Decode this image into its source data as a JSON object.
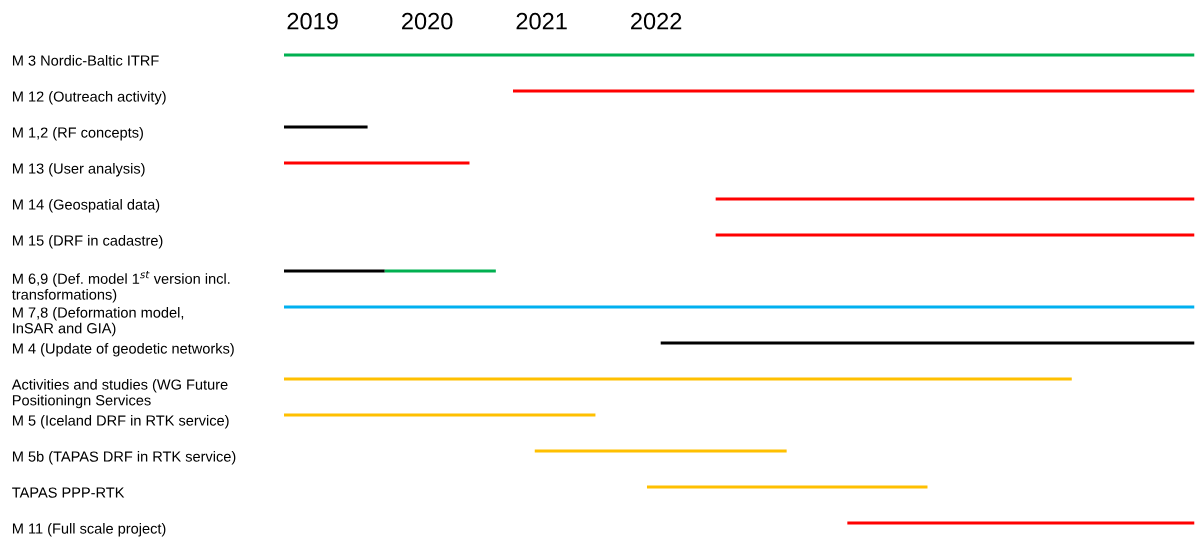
{
  "chart_data": {
    "type": "bar",
    "orientation": "horizontal",
    "categories": [
      "M 3 Nordic-Baltic ITRF",
      "M 12 (Outreach activity)",
      "M 1,2 (RF concepts)",
      "M 13 (User analysis)",
      "M 14 (Geospatial data)",
      "M 15 (DRF in cadastre)",
      "M 6,9 (Def. model 1$^{st}$ version incl.\ntransformations)",
      "M 7,8 (Deformation model,\nInSAR and GIA)",
      "M 4 (Update of geodetic networks)",
      "Activities and studies (WG Future\nPositioningn Services",
      "M 5 (Iceland DRF in RTK service)",
      "M 5b (TAPAS DRF in RTK service)",
      "TAPAS PPP-RTK",
      "M 11 (Full scale project)"
    ],
    "series": [
      {
        "base": [
          2019,
          2021,
          2019,
          2019,
          2022.77,
          2022.77,
          2019,
          2019,
          2022.29,
          2019,
          2019,
          2021.19,
          2022.17,
          2023.92
        ],
        "values": [
          7.95,
          5.95,
          0.73,
          1.62,
          4.18,
          4.18,
          0.88,
          7.95,
          4.66,
          6.88,
          2.72,
          2.2,
          2.45,
          3.03
        ],
        "colors": [
          "#00b050",
          "#ff0000",
          "#000000",
          "#ff0000",
          "#ff0000",
          "#ff0000",
          "#000000",
          "#00b0f0",
          "#000000",
          "#ffc000",
          "#ffc000",
          "#ffc000",
          "#ffc000",
          "#ff0000"
        ]
      },
      {
        "values": [
          null,
          null,
          null,
          null,
          null,
          null,
          0.97,
          null,
          null,
          null,
          null,
          null,
          null,
          null
        ],
        "base": [
          null,
          null,
          null,
          null,
          null,
          null,
          2019.88,
          null,
          null,
          null,
          null,
          null,
          null,
          null
        ],
        "color": "#00b050"
      }
    ],
    "xlim": [
      2019,
      2027
    ],
    "xticks": [
      {
        "value": 2019.25,
        "label": "2019"
      },
      {
        "value": 2020.25,
        "label": "2020"
      },
      {
        "value": 2021.25,
        "label": "2021"
      },
      {
        "value": 2022.25,
        "label": "2022"
      }
    ],
    "grid": false,
    "legend": false
  }
}
